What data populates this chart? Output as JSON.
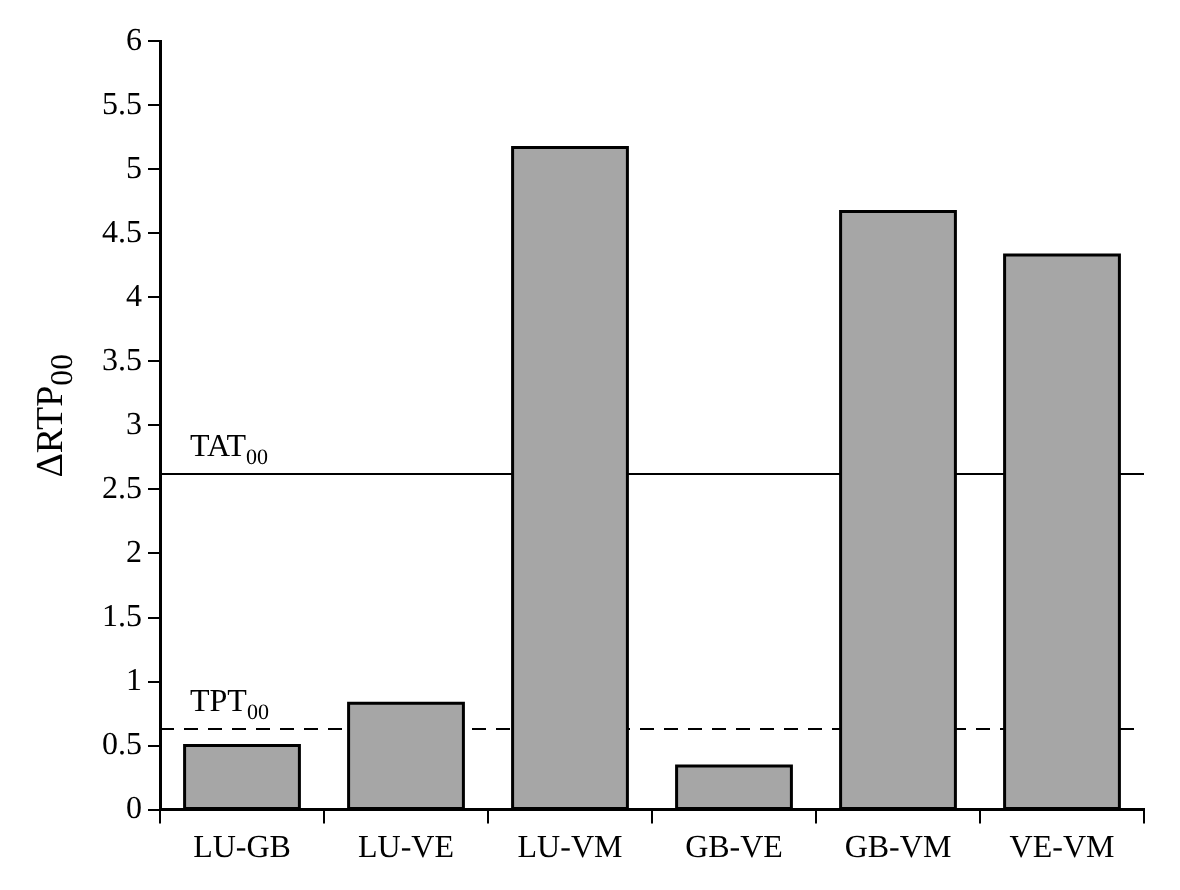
{
  "chart_data": {
    "type": "bar",
    "ylabel": "ΔRTP$_{00}$",
    "categories": [
      "LU-GB",
      "LU-VE",
      "LU-VM",
      "GB-VE",
      "GB-VM",
      "VE-VM"
    ],
    "values": [
      0.5,
      0.83,
      5.17,
      0.34,
      4.67,
      4.33
    ],
    "color": "#a6a6a6",
    "ylim": [
      0,
      6
    ],
    "yticks": [
      0,
      0.5,
      1,
      1.5,
      2,
      2.5,
      3,
      3.5,
      4,
      4.5,
      5,
      5.5,
      6
    ],
    "grid": false,
    "legend": false,
    "ref_lines": [
      {
        "axis": "y",
        "value": 2.62,
        "label": "TAT$_{00}$",
        "color": "#000000",
        "line_style": "solid"
      },
      {
        "axis": "y",
        "value": 0.63,
        "label": "TPT$_{00}$",
        "color": "#000000",
        "line_style": "dashed"
      }
    ]
  }
}
